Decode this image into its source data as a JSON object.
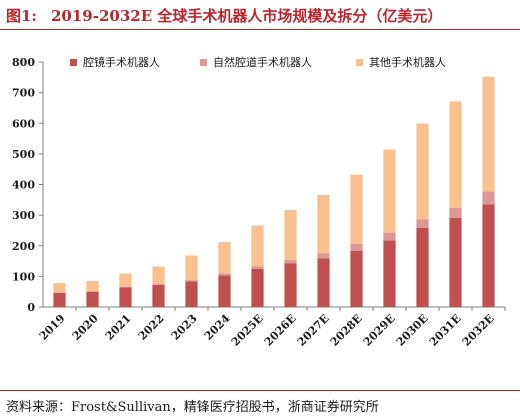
{
  "header": {
    "figure_number": "图1:",
    "title": "2019-2032E 全球手术机器人市场规模及拆分（亿美元）"
  },
  "source_note": "资料来源：Frost&Sullivan，精锋医疗招股书，浙商证券研究所",
  "colors": {
    "accent": "#b8272c",
    "series": [
      "#c0504d",
      "#dc9894",
      "#fac090"
    ]
  },
  "chart_data": {
    "type": "bar",
    "stacked": true,
    "categories": [
      "2019",
      "2020",
      "2021",
      "2022",
      "2023",
      "2024",
      "2025E",
      "2026E",
      "2027E",
      "2028E",
      "2029E",
      "2030E",
      "2031E",
      "2032E"
    ],
    "series": [
      {
        "name": "腔镜手术机器人",
        "values": [
          46,
          50,
          64,
          72,
          84,
          103,
          125,
          142,
          159,
          184,
          217,
          258,
          291,
          335
        ]
      },
      {
        "name": "自然腔道手术机器人",
        "values": [
          2,
          2,
          2,
          3,
          4,
          7,
          8,
          12,
          17,
          22,
          26,
          28,
          33,
          42
        ]
      },
      {
        "name": "其他手术机器人",
        "values": [
          30,
          33,
          43,
          57,
          80,
          102,
          133,
          163,
          190,
          226,
          271,
          313,
          347,
          375
        ]
      }
    ],
    "yticks": [
      0,
      100,
      200,
      300,
      400,
      500,
      600,
      700,
      800
    ],
    "ylim": [
      0,
      800
    ],
    "legend_position": "top-left",
    "grid": false
  }
}
